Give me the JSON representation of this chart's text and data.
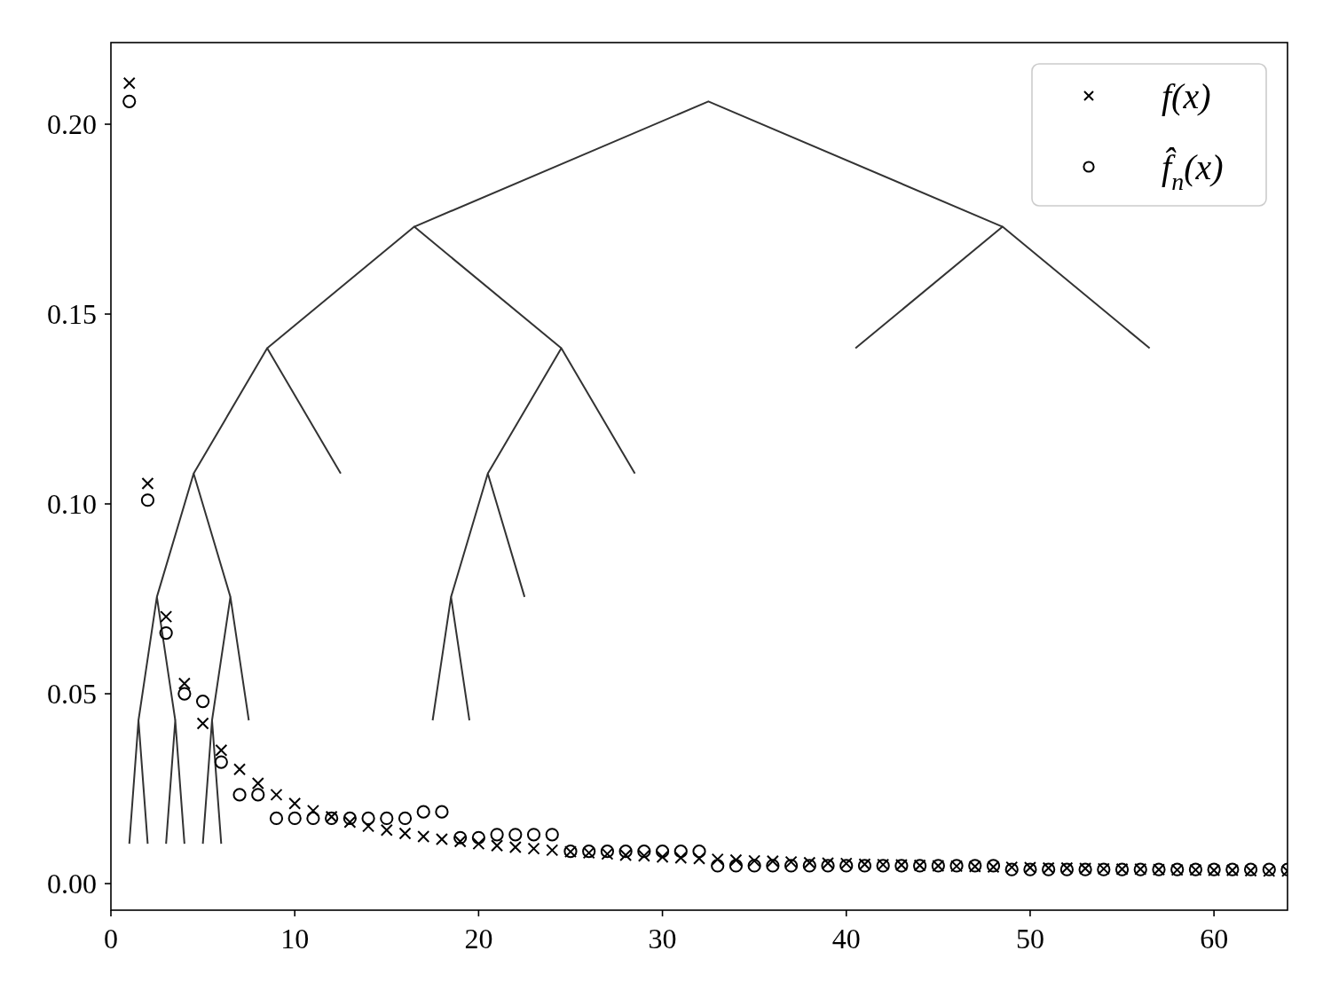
{
  "chart_data": {
    "type": "scatter",
    "x": [
      1,
      2,
      3,
      4,
      5,
      6,
      7,
      8,
      9,
      10,
      11,
      12,
      13,
      14,
      15,
      16,
      17,
      18,
      19,
      20,
      21,
      22,
      23,
      24,
      25,
      26,
      27,
      28,
      29,
      30,
      31,
      32,
      33,
      34,
      35,
      36,
      37,
      38,
      39,
      40,
      41,
      42,
      43,
      44,
      45,
      46,
      47,
      48,
      49,
      50,
      51,
      52,
      53,
      54,
      55,
      56,
      57,
      58,
      59,
      60,
      61,
      62,
      63,
      64
    ],
    "xlim": [
      0,
      64
    ],
    "ylim": [
      -0.007,
      0.2215
    ],
    "xticks": [
      0,
      10,
      20,
      30,
      40,
      50,
      60
    ],
    "yticks": [
      {
        "value": 0,
        "label": "0.00"
      },
      0.05,
      {
        "value": 0.1,
        "label": "0.10"
      },
      0.15,
      {
        "value": 0.2,
        "label": "0.20"
      }
    ],
    "legend": "top right",
    "series": [
      {
        "type": "line",
        "color": "#333333",
        "x": [
          16.5,
          32.5,
          48.5
        ],
        "values": [
          0.173,
          0.206,
          0.173
        ]
      },
      {
        "type": "line",
        "color": "#333333",
        "x": [
          8.5,
          16.5,
          24.5
        ],
        "values": [
          0.141,
          0.173,
          0.141
        ]
      },
      {
        "type": "line",
        "color": "#333333",
        "x": [
          40.5,
          48.5,
          56.5
        ],
        "values": [
          0.141,
          0.173,
          0.141
        ]
      },
      {
        "type": "line",
        "color": "#333333",
        "x": [
          4.5,
          8.5,
          12.5
        ],
        "values": [
          0.108,
          0.141,
          0.108
        ]
      },
      {
        "type": "line",
        "color": "#333333",
        "x": [
          20.5,
          24.5,
          28.5
        ],
        "values": [
          0.108,
          0.141,
          0.108
        ]
      },
      {
        "type": "line",
        "color": "#333333",
        "x": [
          2.5,
          4.5,
          6.5
        ],
        "values": [
          0.0755,
          0.108,
          0.0755
        ]
      },
      {
        "type": "line",
        "color": "#333333",
        "x": [
          18.5,
          20.5,
          22.5
        ],
        "values": [
          0.0755,
          0.108,
          0.0755
        ]
      },
      {
        "type": "line",
        "color": "#333333",
        "x": [
          1.5,
          2.5,
          3.5
        ],
        "values": [
          0.043,
          0.0755,
          0.043
        ]
      },
      {
        "type": "line",
        "color": "#333333",
        "x": [
          5.5,
          6.5,
          7.5
        ],
        "values": [
          0.043,
          0.0755,
          0.043
        ]
      },
      {
        "type": "line",
        "color": "#333333",
        "x": [
          17.5,
          18.5,
          19.5
        ],
        "values": [
          0.043,
          0.0755,
          0.043
        ]
      },
      {
        "type": "line",
        "color": "#333333",
        "x": [
          1,
          1.5,
          2
        ],
        "values": [
          0.0105,
          0.043,
          0.0105
        ]
      },
      {
        "type": "line",
        "color": "#333333",
        "x": [
          3,
          3.5,
          4
        ],
        "values": [
          0.0105,
          0.043,
          0.0105
        ]
      },
      {
        "type": "line",
        "color": "#333333",
        "x": [
          5,
          5.5,
          6
        ],
        "values": [
          0.0105,
          0.043,
          0.0105
        ]
      },
      {
        "name": "f(x)",
        "marker": "cross",
        "color": "#000000",
        "values": [
          0.2108,
          0.1054,
          0.0703,
          0.0527,
          0.0422,
          0.0351,
          0.0301,
          0.0264,
          0.0234,
          0.0211,
          0.0192,
          0.0176,
          0.0162,
          0.0151,
          0.0141,
          0.0132,
          0.0124,
          0.0117,
          0.0111,
          0.0105,
          0.01,
          0.0096,
          0.0092,
          0.0088,
          0.0084,
          0.0081,
          0.0078,
          0.0075,
          0.0073,
          0.007,
          0.0068,
          0.0066,
          0.0064,
          0.0062,
          0.006,
          0.0059,
          0.0057,
          0.0055,
          0.0054,
          0.0053,
          0.0051,
          0.005,
          0.0049,
          0.0048,
          0.0047,
          0.0046,
          0.0045,
          0.0044,
          0.0043,
          0.0042,
          0.0041,
          0.0041,
          0.004,
          0.0039,
          0.0038,
          0.0038,
          0.0037,
          0.0036,
          0.0036,
          0.0035,
          0.0035,
          0.0034,
          0.0033,
          0.0033
        ]
      },
      {
        "name": "f̂$_{n}$(x)",
        "marker": "circle",
        "color": "#000000",
        "values": [
          0.206,
          0.101,
          0.066,
          0.05,
          0.048,
          0.032,
          0.0234,
          0.0234,
          0.0172,
          0.0172,
          0.0172,
          0.0172,
          0.0172,
          0.0172,
          0.0172,
          0.0172,
          0.0189,
          0.0189,
          0.0121,
          0.0121,
          0.0129,
          0.0129,
          0.0129,
          0.0129,
          0.0085,
          0.0085,
          0.0085,
          0.0085,
          0.0085,
          0.0085,
          0.0085,
          0.0085,
          0.0047,
          0.0047,
          0.0047,
          0.0047,
          0.0047,
          0.0047,
          0.0047,
          0.0047,
          0.0047,
          0.0047,
          0.0047,
          0.0047,
          0.0047,
          0.0047,
          0.0047,
          0.0047,
          0.0037,
          0.0037,
          0.0037,
          0.0037,
          0.0037,
          0.0037,
          0.0037,
          0.0037,
          0.0037,
          0.0037,
          0.0037,
          0.0037,
          0.0037,
          0.0037,
          0.0037,
          0.0037
        ]
      }
    ]
  }
}
